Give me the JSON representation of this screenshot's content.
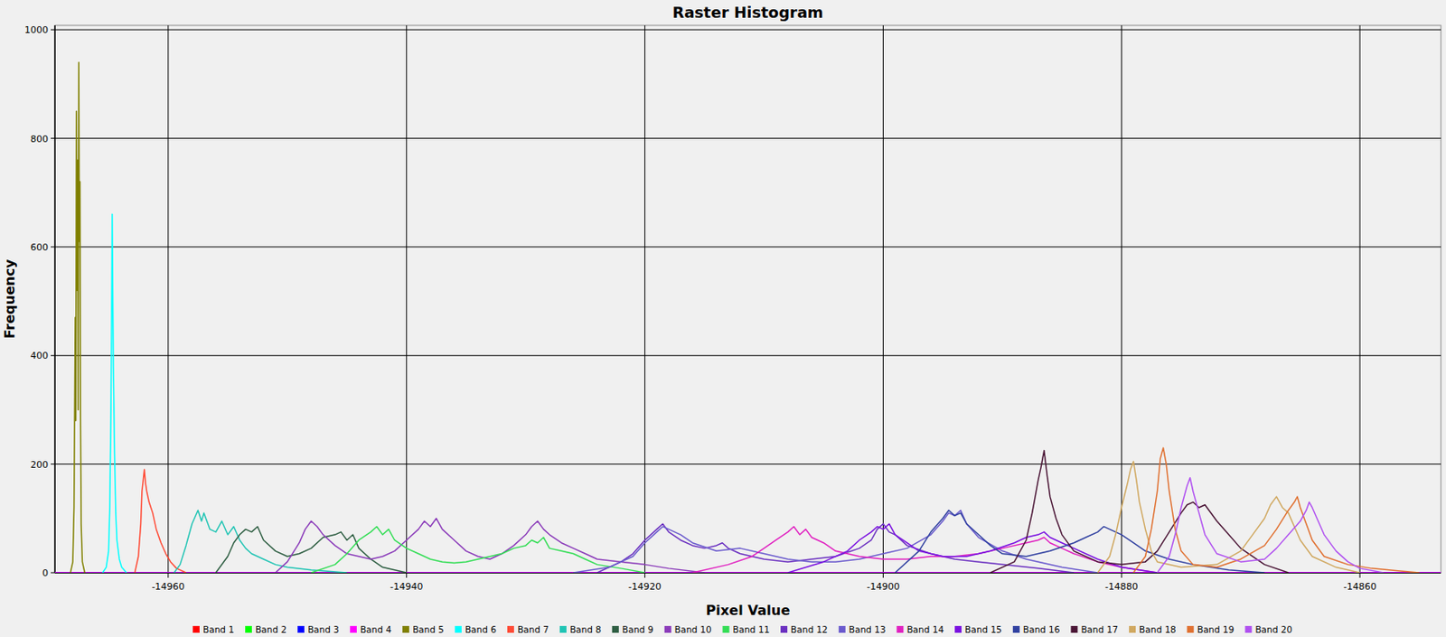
{
  "chart_data": {
    "type": "line",
    "title": "Raster Histogram",
    "x_label": "Pixel Value",
    "y_label": "Frequency",
    "xlim": [
      -14969.5,
      -14853.2
    ],
    "ylim": [
      0,
      1008
    ],
    "xticks": [
      -14960,
      -14940,
      -14920,
      -14900,
      -14880,
      -14860
    ],
    "yticks": [
      0,
      200,
      400,
      600,
      800,
      1000
    ],
    "grid": true,
    "legend": "bottom",
    "series": [
      {
        "name": "Band 1",
        "color": "#ff0000",
        "x": [
          -14969.5,
          -14853.2
        ],
        "values": [
          0,
          0
        ]
      },
      {
        "name": "Band 2",
        "color": "#00ff00",
        "x": [
          -14969.5,
          -14853.2
        ],
        "values": [
          0,
          0
        ]
      },
      {
        "name": "Band 3",
        "color": "#0000ff",
        "x": [
          -14969.5,
          -14853.2
        ],
        "values": [
          0,
          0
        ]
      },
      {
        "name": "Band 4",
        "color": "#ff00ff",
        "x": [
          -14969.5,
          -14853.2
        ],
        "values": [
          0,
          0
        ]
      },
      {
        "name": "Band 5",
        "color": "#808000",
        "x": [
          -14968.2,
          -14968.0,
          -14967.9,
          -14967.8,
          -14967.75,
          -14967.7,
          -14967.65,
          -14967.6,
          -14967.55,
          -14967.5,
          -14967.45,
          -14967.4,
          -14967.35,
          -14967.3,
          -14967.2,
          -14967.0
        ],
        "values": [
          0,
          20,
          120,
          470,
          280,
          850,
          520,
          760,
          300,
          940,
          610,
          720,
          280,
          90,
          20,
          0
        ]
      },
      {
        "name": "Band 6",
        "color": "#00ffff",
        "x": [
          -14965.5,
          -14965.2,
          -14965.0,
          -14964.9,
          -14964.8,
          -14964.75,
          -14964.7,
          -14964.65,
          -14964.6,
          -14964.5,
          -14964.4,
          -14964.3,
          -14964.1,
          -14963.9,
          -14963.5
        ],
        "values": [
          0,
          10,
          40,
          120,
          300,
          460,
          660,
          520,
          380,
          220,
          110,
          60,
          25,
          10,
          0
        ]
      },
      {
        "name": "Band 7",
        "color": "#ff4a35",
        "x": [
          -14962.8,
          -14962.5,
          -14962.3,
          -14962.2,
          -14962.1,
          -14962.0,
          -14961.9,
          -14961.8,
          -14961.6,
          -14961.3,
          -14961.0,
          -14960.6,
          -14960.2,
          -14959.8,
          -14959.3,
          -14958.5
        ],
        "values": [
          0,
          30,
          90,
          150,
          170,
          190,
          165,
          150,
          130,
          110,
          80,
          55,
          35,
          20,
          8,
          0
        ]
      },
      {
        "name": "Band 8",
        "color": "#20c4b4",
        "x": [
          -14959.5,
          -14959,
          -14958.5,
          -14958,
          -14957.5,
          -14957.2,
          -14957,
          -14956.5,
          -14956,
          -14955.5,
          -14955,
          -14954.5,
          -14954,
          -14953.5,
          -14953,
          -14952,
          -14951,
          -14950,
          -14948,
          -14945
        ],
        "values": [
          0,
          15,
          50,
          90,
          115,
          95,
          110,
          80,
          75,
          95,
          70,
          85,
          60,
          45,
          35,
          25,
          15,
          10,
          5,
          0
        ]
      },
      {
        "name": "Band 9",
        "color": "#2e5e42",
        "x": [
          -14956,
          -14955,
          -14954.5,
          -14954,
          -14953.5,
          -14953,
          -14952.5,
          -14952,
          -14951,
          -14950,
          -14949,
          -14948,
          -14947,
          -14946,
          -14945.5,
          -14945,
          -14944.5,
          -14944,
          -14943,
          -14942,
          -14940
        ],
        "values": [
          0,
          30,
          55,
          70,
          80,
          75,
          85,
          60,
          40,
          30,
          35,
          45,
          65,
          70,
          75,
          60,
          70,
          45,
          25,
          10,
          0
        ]
      },
      {
        "name": "Band 10",
        "color": "#8a3ab9",
        "x": [
          -14951,
          -14950,
          -14949,
          -14948.5,
          -14948,
          -14947.5,
          -14947,
          -14946,
          -14945,
          -14944,
          -14943,
          -14942,
          -14941,
          -14940,
          -14939,
          -14938.5,
          -14938,
          -14937.5,
          -14937,
          -14936,
          -14935,
          -14934,
          -14933,
          -14932,
          -14931,
          -14930,
          -14929.5,
          -14929,
          -14928.5,
          -14928,
          -14927,
          -14926,
          -14925,
          -14924,
          -14922,
          -14920,
          -14918,
          -14915
        ],
        "values": [
          0,
          20,
          55,
          80,
          95,
          85,
          70,
          50,
          35,
          30,
          25,
          30,
          40,
          60,
          80,
          95,
          85,
          100,
          80,
          60,
          40,
          30,
          25,
          35,
          50,
          70,
          85,
          95,
          80,
          70,
          55,
          45,
          35,
          25,
          20,
          15,
          8,
          0
        ]
      },
      {
        "name": "Band 11",
        "color": "#33dd55",
        "x": [
          -14948,
          -14946,
          -14945,
          -14944,
          -14943,
          -14942.5,
          -14942,
          -14941.5,
          -14941,
          -14940,
          -14939,
          -14938,
          -14937,
          -14936,
          -14935,
          -14934,
          -14933,
          -14932,
          -14931,
          -14930,
          -14929.5,
          -14929,
          -14928.5,
          -14928,
          -14927,
          -14926,
          -14925,
          -14924,
          -14922,
          -14920
        ],
        "values": [
          0,
          15,
          35,
          60,
          75,
          85,
          70,
          80,
          60,
          45,
          35,
          25,
          20,
          18,
          20,
          25,
          30,
          35,
          45,
          50,
          60,
          55,
          65,
          45,
          40,
          35,
          25,
          15,
          8,
          0
        ]
      },
      {
        "name": "Band 12",
        "color": "#6a2fc0",
        "x": [
          -14924,
          -14922,
          -14921,
          -14920,
          -14919,
          -14918.5,
          -14918,
          -14917,
          -14916,
          -14915,
          -14914,
          -14913.5,
          -14913,
          -14912,
          -14910,
          -14908,
          -14906,
          -14904,
          -14902,
          -14901,
          -14900.5,
          -14900,
          -14899.5,
          -14899,
          -14898,
          -14896,
          -14894,
          -14892,
          -14890,
          -14887,
          -14884
        ],
        "values": [
          0,
          20,
          35,
          60,
          80,
          90,
          75,
          60,
          50,
          45,
          50,
          55,
          45,
          35,
          25,
          20,
          25,
          30,
          45,
          60,
          80,
          90,
          75,
          70,
          50,
          35,
          25,
          20,
          15,
          8,
          0
        ]
      },
      {
        "name": "Band 13",
        "color": "#6a5acd",
        "x": [
          -14926,
          -14923,
          -14921,
          -14920,
          -14919,
          -14918.5,
          -14918,
          -14917,
          -14916,
          -14914,
          -14912,
          -14910,
          -14908,
          -14906,
          -14904,
          -14902,
          -14900,
          -14898,
          -14896,
          -14895,
          -14894.5,
          -14894,
          -14893.5,
          -14893,
          -14892,
          -14890,
          -14888,
          -14885,
          -14882
        ],
        "values": [
          0,
          10,
          30,
          55,
          75,
          85,
          80,
          70,
          55,
          40,
          45,
          35,
          25,
          20,
          20,
          25,
          35,
          45,
          70,
          95,
          110,
          105,
          115,
          90,
          65,
          40,
          25,
          10,
          0
        ]
      },
      {
        "name": "Band 14",
        "color": "#e020c0",
        "x": [
          -14916,
          -14913,
          -14911,
          -14910,
          -14909,
          -14908,
          -14907.5,
          -14907,
          -14906.5,
          -14906,
          -14905,
          -14904,
          -14902,
          -14900,
          -14898,
          -14896,
          -14894,
          -14892,
          -14890,
          -14888,
          -14887,
          -14886.5,
          -14886,
          -14885,
          -14884,
          -14882,
          -14880,
          -14877
        ],
        "values": [
          0,
          15,
          30,
          45,
          60,
          75,
          85,
          70,
          80,
          65,
          55,
          40,
          30,
          25,
          25,
          30,
          30,
          35,
          45,
          55,
          60,
          65,
          55,
          45,
          35,
          20,
          10,
          0
        ]
      },
      {
        "name": "Band 15",
        "color": "#7a10e0",
        "x": [
          -14908,
          -14905,
          -14903,
          -14902,
          -14901,
          -14900.5,
          -14900,
          -14899.5,
          -14899,
          -14898,
          -14897,
          -14895,
          -14893,
          -14891,
          -14889,
          -14888,
          -14887,
          -14886.5,
          -14886,
          -14885,
          -14884,
          -14882,
          -14880,
          -14877
        ],
        "values": [
          0,
          20,
          40,
          60,
          75,
          85,
          80,
          90,
          70,
          55,
          40,
          30,
          30,
          40,
          55,
          65,
          70,
          75,
          65,
          55,
          45,
          25,
          10,
          0
        ]
      },
      {
        "name": "Band 16",
        "color": "#3040a0",
        "x": [
          -14899,
          -14897,
          -14896,
          -14895,
          -14894.5,
          -14894,
          -14893.5,
          -14893,
          -14892,
          -14891,
          -14890,
          -14888,
          -14886,
          -14884,
          -14883,
          -14882,
          -14881.5,
          -14881,
          -14880,
          -14879,
          -14878,
          -14876,
          -14874,
          -14871,
          -14868
        ],
        "values": [
          0,
          40,
          75,
          100,
          115,
          105,
          110,
          90,
          70,
          50,
          35,
          30,
          40,
          55,
          65,
          75,
          85,
          80,
          70,
          55,
          40,
          25,
          15,
          5,
          0
        ]
      },
      {
        "name": "Band 17",
        "color": "#4a1535",
        "x": [
          -14891,
          -14889,
          -14888,
          -14887.5,
          -14887,
          -14886.75,
          -14886.5,
          -14886.25,
          -14886,
          -14885.5,
          -14885,
          -14884,
          -14882,
          -14880,
          -14878,
          -14877,
          -14876,
          -14875,
          -14874.5,
          -14874,
          -14873.5,
          -14873,
          -14872,
          -14871,
          -14870,
          -14868,
          -14866
        ],
        "values": [
          0,
          20,
          60,
          110,
          170,
          195,
          225,
          180,
          140,
          100,
          70,
          40,
          20,
          15,
          20,
          40,
          75,
          110,
          125,
          130,
          120,
          125,
          95,
          70,
          45,
          15,
          0
        ]
      },
      {
        "name": "Band 18",
        "color": "#d0a860",
        "x": [
          -14882,
          -14881,
          -14880.5,
          -14880,
          -14879.5,
          -14879.25,
          -14879,
          -14878.75,
          -14878.5,
          -14878,
          -14877.5,
          -14877,
          -14875,
          -14872,
          -14870,
          -14869,
          -14868,
          -14867.5,
          -14867,
          -14866.5,
          -14866,
          -14865.5,
          -14865,
          -14864,
          -14862,
          -14860
        ],
        "values": [
          0,
          30,
          70,
          120,
          165,
          190,
          205,
          170,
          130,
          80,
          40,
          20,
          10,
          15,
          40,
          70,
          100,
          125,
          140,
          120,
          110,
          85,
          60,
          30,
          10,
          0
        ]
      },
      {
        "name": "Band 19",
        "color": "#e07030",
        "x": [
          -14879,
          -14878,
          -14877.5,
          -14877,
          -14876.75,
          -14876.5,
          -14876.25,
          -14876,
          -14875.5,
          -14875,
          -14874,
          -14872,
          -14870,
          -14868,
          -14867,
          -14866,
          -14865.5,
          -14865.25,
          -14865,
          -14864.5,
          -14864,
          -14863,
          -14861,
          -14859,
          -14857,
          -14855
        ],
        "values": [
          0,
          30,
          80,
          150,
          210,
          230,
          200,
          150,
          80,
          40,
          15,
          10,
          25,
          50,
          80,
          115,
          130,
          140,
          120,
          90,
          60,
          30,
          15,
          8,
          4,
          0
        ]
      },
      {
        "name": "Band 20",
        "color": "#b050f0",
        "x": [
          -14877,
          -14876,
          -14875.5,
          -14875,
          -14874.5,
          -14874.25,
          -14874,
          -14873.5,
          -14873,
          -14872,
          -14870,
          -14868,
          -14867,
          -14866,
          -14865,
          -14864.5,
          -14864.25,
          -14864,
          -14863.5,
          -14863,
          -14862,
          -14861,
          -14860,
          -14858
        ],
        "values": [
          0,
          30,
          70,
          120,
          160,
          175,
          150,
          110,
          70,
          35,
          20,
          25,
          45,
          70,
          95,
          115,
          130,
          120,
          95,
          70,
          40,
          20,
          8,
          0
        ]
      }
    ]
  }
}
